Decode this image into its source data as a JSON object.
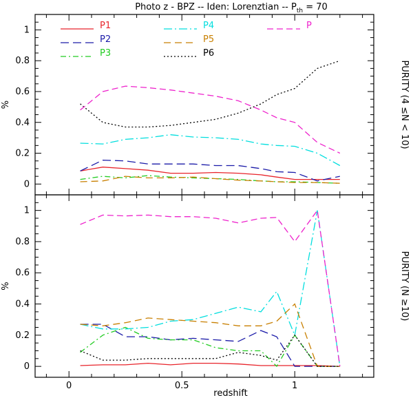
{
  "figure": {
    "title_main": "Photo z - BPZ -- Iden: Lorenztian -- P",
    "title_sub": "th",
    "title_tail": " = 70",
    "xlabel": "redshift"
  },
  "chart_data": [
    {
      "type": "line",
      "panel": "top",
      "title": "Photo z - BPZ -- Iden: Lorenztian -- Pth = 70",
      "xlabel": "redshift",
      "ylabel": "%",
      "right_label": "PURITY (4 ≤N < 10)",
      "xlim": [
        -0.15,
        1.35
      ],
      "ylim": [
        -0.07,
        1.1
      ],
      "x_ticks": [
        0,
        0.5,
        1
      ],
      "y_ticks": [
        0,
        0.2,
        0.4,
        0.6,
        0.8,
        1
      ],
      "x_tick_labels": [
        "0",
        "0.5",
        "1"
      ],
      "y_tick_labels": [
        "0",
        "0.2",
        "0.4",
        "0.6",
        "0.8",
        "1"
      ],
      "x": [
        0.05,
        0.15,
        0.25,
        0.35,
        0.45,
        0.55,
        0.65,
        0.75,
        0.85,
        0.92,
        1.0,
        1.1,
        1.2
      ],
      "series": [
        {
          "name": "P1",
          "color": "#e8232a",
          "dash": "",
          "values": [
            0.085,
            0.11,
            0.1,
            0.09,
            0.07,
            0.07,
            0.075,
            0.07,
            0.06,
            0.045,
            0.03,
            0.03,
            0.03
          ]
        },
        {
          "name": "P2",
          "color": "#1a1aa8",
          "dash": "12,6",
          "values": [
            0.085,
            0.155,
            0.15,
            0.13,
            0.13,
            0.13,
            0.12,
            0.12,
            0.1,
            0.08,
            0.075,
            0.02,
            0.05
          ]
        },
        {
          "name": "P3",
          "color": "#22cc22",
          "dash": "8,4,2,4",
          "values": [
            0.03,
            0.05,
            0.04,
            0.055,
            0.045,
            0.04,
            0.035,
            0.03,
            0.02,
            0.015,
            0.015,
            0.01,
            0.005
          ]
        },
        {
          "name": "P4",
          "color": "#00dede",
          "dash": "12,4,2,4",
          "values": [
            0.265,
            0.26,
            0.29,
            0.3,
            0.32,
            0.305,
            0.3,
            0.29,
            0.26,
            0.25,
            0.245,
            0.2,
            0.12
          ]
        },
        {
          "name": "P5",
          "color": "#c87f00",
          "dash": "10,6",
          "values": [
            0.015,
            0.02,
            0.05,
            0.04,
            0.04,
            0.045,
            0.035,
            0.025,
            0.02,
            0.015,
            0.01,
            0.01,
            0.005
          ]
        },
        {
          "name": "P6",
          "color": "#000000",
          "dash": "2,3",
          "values": [
            0.52,
            0.4,
            0.37,
            0.37,
            0.38,
            0.4,
            0.42,
            0.46,
            0.52,
            0.58,
            0.62,
            0.75,
            0.8
          ]
        },
        {
          "name": "P",
          "color": "#ee22cc",
          "dash": "9,5",
          "values": [
            0.48,
            0.6,
            0.635,
            0.625,
            0.61,
            0.59,
            0.57,
            0.54,
            0.48,
            0.43,
            0.4,
            0.27,
            0.2
          ]
        }
      ]
    },
    {
      "type": "line",
      "panel": "bottom",
      "xlabel": "redshift",
      "ylabel": "%",
      "right_label": "PURITY (N ≥10)",
      "xlim": [
        -0.15,
        1.35
      ],
      "ylim": [
        -0.07,
        1.1
      ],
      "x_ticks": [
        0,
        0.5,
        1
      ],
      "y_ticks": [
        0,
        0.2,
        0.4,
        0.6,
        0.8,
        1
      ],
      "x_tick_labels": [
        "0",
        "0.5",
        "1"
      ],
      "y_tick_labels": [
        "0",
        "0.2",
        "0.4",
        "0.6",
        "0.8",
        "1"
      ],
      "x": [
        0.05,
        0.15,
        0.25,
        0.35,
        0.45,
        0.55,
        0.65,
        0.75,
        0.85,
        0.92,
        1.0,
        1.1,
        1.2
      ],
      "series": [
        {
          "name": "P1",
          "color": "#e8232a",
          "dash": "",
          "values": [
            0.005,
            0.01,
            0.01,
            0.02,
            0.01,
            0.02,
            0.02,
            0.015,
            0.005,
            0.005,
            0.005,
            0.005,
            0.0
          ]
        },
        {
          "name": "P2",
          "color": "#1a1aa8",
          "dash": "12,6",
          "values": [
            0.27,
            0.27,
            0.19,
            0.19,
            0.17,
            0.18,
            0.17,
            0.16,
            0.23,
            0.19,
            0.0,
            0.0,
            0.0
          ]
        },
        {
          "name": "P3",
          "color": "#22cc22",
          "dash": "8,4,2,4",
          "values": [
            0.09,
            0.2,
            0.25,
            0.18,
            0.17,
            0.17,
            0.12,
            0.1,
            0.1,
            0.0,
            0.2,
            0.0,
            0.0
          ]
        },
        {
          "name": "P4",
          "color": "#00dede",
          "dash": "12,4,2,4",
          "values": [
            0.27,
            0.24,
            0.24,
            0.25,
            0.29,
            0.3,
            0.34,
            0.38,
            0.35,
            0.48,
            0.2,
            1.0,
            0.0
          ]
        },
        {
          "name": "P5",
          "color": "#c87f00",
          "dash": "10,6",
          "values": [
            0.27,
            0.26,
            0.28,
            0.31,
            0.3,
            0.29,
            0.28,
            0.26,
            0.26,
            0.29,
            0.4,
            0.0,
            0.0
          ]
        },
        {
          "name": "P6",
          "color": "#000000",
          "dash": "2,3",
          "values": [
            0.1,
            0.04,
            0.04,
            0.05,
            0.05,
            0.05,
            0.05,
            0.09,
            0.07,
            0.04,
            0.2,
            0.0,
            0.0
          ]
        },
        {
          "name": "P",
          "color": "#ee22cc",
          "dash": "9,5",
          "values": [
            0.91,
            0.97,
            0.965,
            0.97,
            0.96,
            0.96,
            0.95,
            0.92,
            0.95,
            0.955,
            0.8,
            1.0,
            0.0
          ]
        }
      ]
    }
  ],
  "legend": [
    {
      "label": "P1",
      "color": "#e8232a",
      "dash": ""
    },
    {
      "label": "P2",
      "color": "#1a1aa8",
      "dash": "12,6"
    },
    {
      "label": "P3",
      "color": "#22cc22",
      "dash": "8,4,2,4"
    },
    {
      "label": "P4",
      "color": "#00dede",
      "dash": "12,4,2,4"
    },
    {
      "label": "P5",
      "color": "#c87f00",
      "dash": "10,6"
    },
    {
      "label": "P6",
      "color": "#000000",
      "dash": "2,3"
    },
    {
      "label": "P",
      "color": "#ee22cc",
      "dash": "9,5"
    }
  ]
}
